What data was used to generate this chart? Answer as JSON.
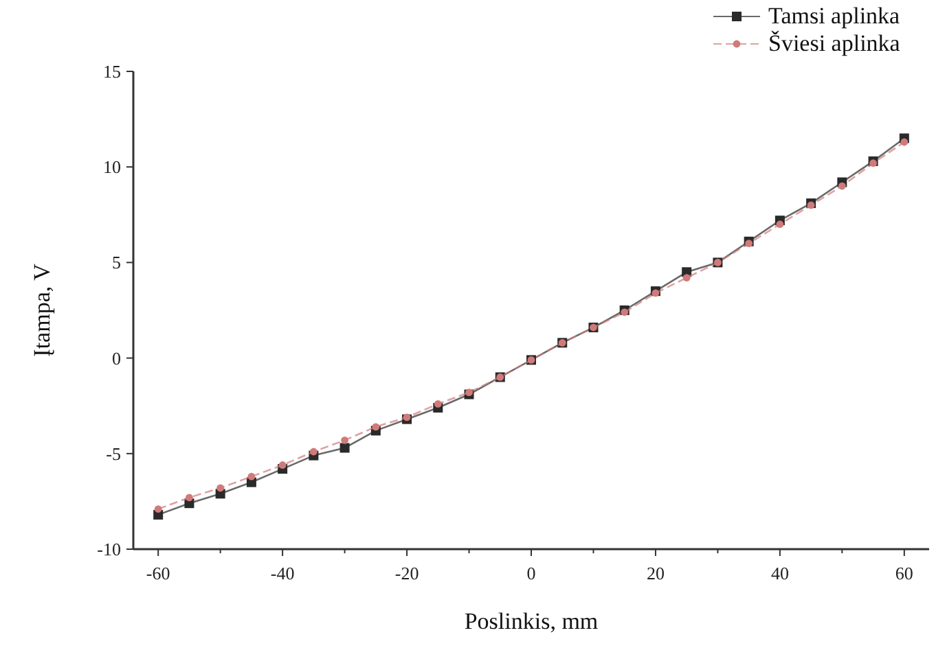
{
  "chart_data": {
    "type": "line",
    "xlabel": "Poslinkis, mm",
    "ylabel": "Įtampa, V",
    "x": [
      -60,
      -55,
      -50,
      -45,
      -40,
      -35,
      -30,
      -25,
      -20,
      -15,
      -10,
      -5,
      0,
      5,
      10,
      15,
      20,
      25,
      30,
      35,
      40,
      45,
      50,
      55,
      60
    ],
    "series": [
      {
        "name": "Tamsi aplinka",
        "color": "#2a2a2a",
        "marker": "square",
        "line_style": "solid",
        "values": [
          -8.2,
          -7.6,
          -7.1,
          -6.5,
          -5.8,
          -5.1,
          -4.7,
          -3.8,
          -3.2,
          -2.6,
          -1.9,
          -1.0,
          -0.1,
          0.8,
          1.6,
          2.5,
          3.5,
          4.5,
          5.0,
          6.1,
          7.2,
          8.1,
          9.2,
          10.3,
          11.5
        ]
      },
      {
        "name": "Šviesi aplinka",
        "color": "#d07a7a",
        "marker": "circle",
        "line_style": "dashed",
        "values": [
          -7.9,
          -7.3,
          -6.8,
          -6.2,
          -5.6,
          -4.9,
          -4.3,
          -3.6,
          -3.1,
          -2.4,
          -1.8,
          -1.0,
          -0.1,
          0.8,
          1.6,
          2.4,
          3.4,
          4.2,
          5.0,
          6.0,
          7.0,
          8.0,
          9.0,
          10.2,
          11.3
        ]
      }
    ],
    "xlim": [
      -64,
      64
    ],
    "xticks": [
      -60,
      {
        "value": -50,
        "label": null
      },
      -40,
      {
        "value": -30,
        "label": null
      },
      -20,
      {
        "value": -10,
        "label": null
      },
      0,
      {
        "value": 10,
        "label": null
      },
      20,
      {
        "value": 30,
        "label": null
      },
      40,
      {
        "value": 50,
        "label": null
      },
      60
    ],
    "ylim": [
      -10,
      15
    ],
    "yticks": [
      -10,
      -5,
      0,
      5,
      10,
      15
    ],
    "grid": false,
    "legend": "top right"
  }
}
